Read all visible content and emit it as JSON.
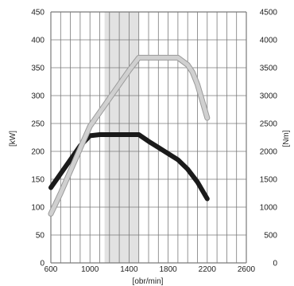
{
  "chart_data": {
    "type": "line",
    "title": "",
    "xlabel": "[obr/min]",
    "ylabel_left": "[kW]",
    "ylabel_right": "[Nm]",
    "xlim": [
      600,
      2600
    ],
    "ylim_left": [
      0,
      450
    ],
    "ylim_right": [
      0,
      4500
    ],
    "x_ticks": [
      600,
      1000,
      1400,
      1800,
      2200,
      2600
    ],
    "x_tick_labels": [
      "600",
      "1000",
      "1400",
      "1800",
      "2200",
      "2600"
    ],
    "y_left_ticks": [
      0,
      50,
      100,
      150,
      200,
      250,
      300,
      350,
      400,
      450
    ],
    "y_left_tick_labels": [
      "0",
      "50",
      "100",
      "150",
      "200",
      "250",
      "300",
      "350",
      "400",
      "450"
    ],
    "y_right_ticks": [
      0,
      500,
      1000,
      1500,
      2000,
      2500,
      3000,
      3500,
      4000,
      4500
    ],
    "y_right_tick_labels": [
      "0",
      "500",
      "1000",
      "1500",
      "2000",
      "2500",
      "3000",
      "3500",
      "4000",
      "4500"
    ],
    "grid": true,
    "highlight_band_x": [
      1150,
      1500
    ],
    "series": [
      {
        "axis": "left",
        "color": "#1a1a1a",
        "x": [
          600,
          700,
          800,
          900,
          1000,
          1100,
          1200,
          1300,
          1400,
          1500,
          1600,
          1700,
          1800,
          1900,
          2000,
          2100,
          2200
        ],
        "values": [
          135,
          160,
          185,
          210,
          228,
          230,
          230,
          230,
          230,
          230,
          218,
          207,
          196,
          185,
          168,
          145,
          115
        ]
      },
      {
        "axis": "right",
        "color": "#d0d0d0",
        "x": [
          600,
          700,
          800,
          900,
          1000,
          1100,
          1200,
          1300,
          1400,
          1500,
          1600,
          1700,
          1800,
          1900,
          2000,
          2050,
          2100,
          2150,
          2200
        ],
        "values": [
          880,
          1250,
          1650,
          2050,
          2450,
          2700,
          2950,
          3200,
          3450,
          3680,
          3680,
          3680,
          3680,
          3680,
          3550,
          3420,
          3200,
          2900,
          2600
        ]
      }
    ]
  }
}
